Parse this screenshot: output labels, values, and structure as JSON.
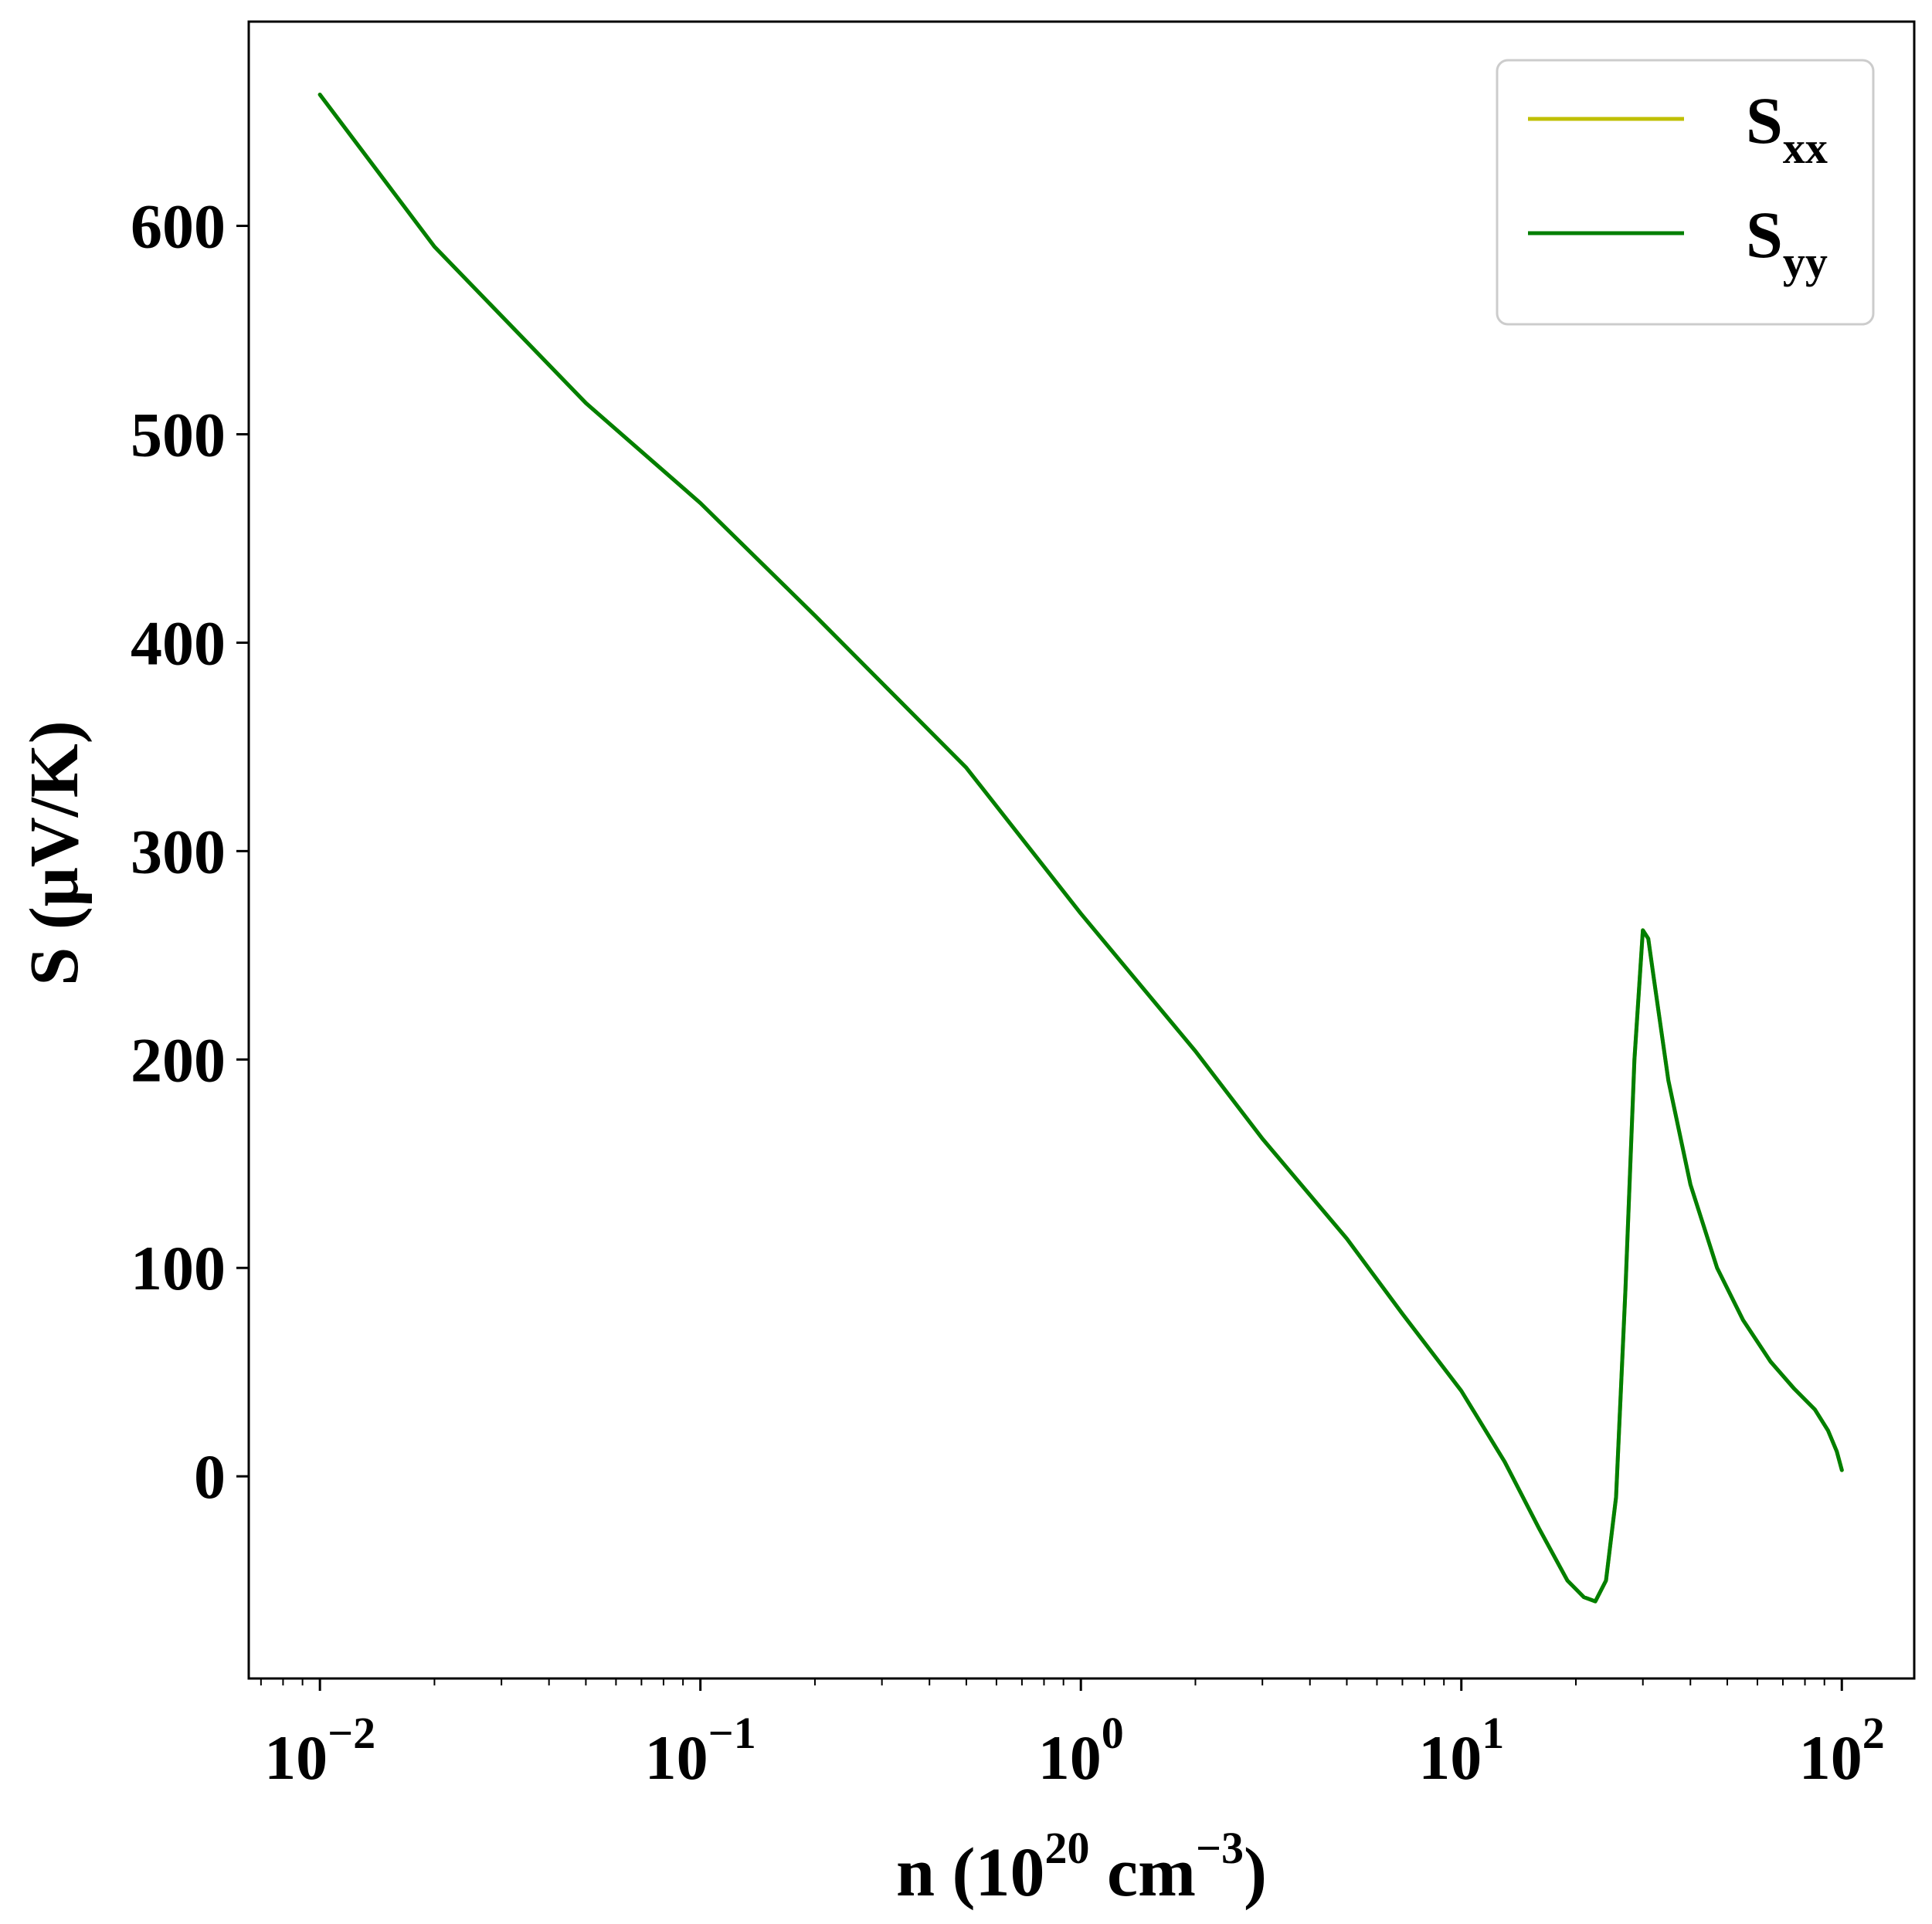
{
  "chart_data": {
    "type": "line",
    "x_scale": "log",
    "xlim": [
      0.0065,
      155
    ],
    "ylim": [
      -97,
      698
    ],
    "xlabel": {
      "base": "n (10",
      "exp": "20",
      "mid": " cm",
      "exp2": "−3",
      "end": ")"
    },
    "ylabel": "S (μV/K)",
    "x_ticks": [
      {
        "value": 0.01,
        "base": "10",
        "exp": "−2"
      },
      {
        "value": 0.1,
        "base": "10",
        "exp": "−1"
      },
      {
        "value": 1,
        "base": "10",
        "exp": "0"
      },
      {
        "value": 10,
        "base": "10",
        "exp": "1"
      },
      {
        "value": 100,
        "base": "10",
        "exp": "2"
      }
    ],
    "y_ticks": [
      0,
      100,
      200,
      300,
      400,
      500,
      600
    ],
    "grid": false,
    "legend_position": "top-right",
    "series": [
      {
        "name": "S",
        "sub": "xx",
        "color": "#bfbf00",
        "x": [
          0.01,
          0.02,
          0.05,
          0.1,
          0.2,
          0.5,
          1,
          2,
          3,
          5,
          7,
          10,
          13,
          16,
          19,
          21,
          22.5,
          24,
          25.5,
          27,
          28.5,
          30,
          31,
          32,
          35,
          40,
          47,
          55,
          65,
          75,
          85,
          92,
          97,
          100
        ],
        "y": [
          663,
          590,
          515,
          467,
          413,
          340,
          270,
          204,
          162,
          114,
          78,
          41,
          7,
          -25,
          -50,
          -58,
          -60,
          -50,
          -10,
          90,
          200,
          262,
          258,
          240,
          190,
          140,
          100,
          75,
          55,
          42,
          32,
          22,
          12,
          3
        ]
      },
      {
        "name": "S",
        "sub": "yy",
        "color": "#007f00",
        "x": [
          0.01,
          0.02,
          0.05,
          0.1,
          0.2,
          0.5,
          1,
          2,
          3,
          5,
          7,
          10,
          13,
          16,
          19,
          21,
          22.5,
          24,
          25.5,
          27,
          28.5,
          30,
          31,
          32,
          35,
          40,
          47,
          55,
          65,
          75,
          85,
          92,
          97,
          100
        ],
        "y": [
          663,
          590,
          515,
          467,
          413,
          340,
          270,
          204,
          162,
          114,
          78,
          41,
          7,
          -25,
          -50,
          -58,
          -60,
          -50,
          -10,
          90,
          200,
          262,
          258,
          240,
          190,
          140,
          100,
          75,
          55,
          42,
          32,
          22,
          12,
          3
        ]
      }
    ]
  }
}
